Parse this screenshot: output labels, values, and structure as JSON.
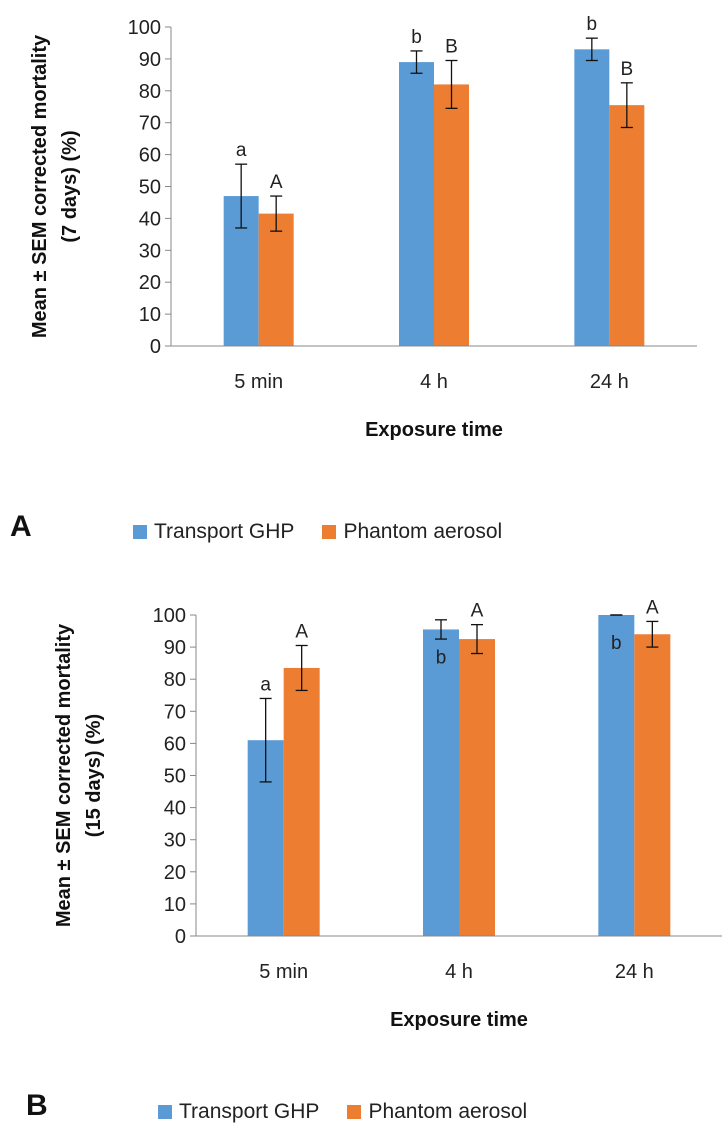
{
  "chart_data": [
    {
      "panel": "A",
      "type": "bar",
      "ylabel_lines": [
        "Mean ± SEM corrected mortality",
        "(7 days) (%)"
      ],
      "xlabel": "Exposure time",
      "categories": [
        "5 min",
        "4 h",
        "24 h"
      ],
      "ylim": [
        0,
        100
      ],
      "yticks": [
        0,
        10,
        20,
        30,
        40,
        50,
        60,
        70,
        80,
        90,
        100
      ],
      "grid": false,
      "legend_position": "bottom",
      "series": [
        {
          "name": "Transport GHP",
          "color": "#5B9BD5",
          "values": [
            47,
            89,
            93
          ],
          "errors": [
            10,
            3.5,
            3.5
          ],
          "letters": [
            "a",
            "b",
            "b"
          ]
        },
        {
          "name": "Phantom aerosol",
          "color": "#ED7D31",
          "values": [
            41.5,
            82,
            75.5
          ],
          "errors": [
            5.5,
            7.5,
            7
          ],
          "letters": [
            "A",
            "B",
            "B"
          ]
        }
      ]
    },
    {
      "panel": "B",
      "type": "bar",
      "ylabel_lines": [
        "Mean ± SEM corrected mortality",
        "(15 days) (%)"
      ],
      "xlabel": "Exposure time",
      "categories": [
        "5 min",
        "4 h",
        "24 h"
      ],
      "ylim": [
        0,
        100
      ],
      "yticks": [
        0,
        10,
        20,
        30,
        40,
        50,
        60,
        70,
        80,
        90,
        100
      ],
      "grid": false,
      "legend_position": "bottom",
      "series": [
        {
          "name": "Transport GHP",
          "color": "#5B9BD5",
          "values": [
            61,
            95.5,
            100
          ],
          "errors": [
            13,
            3,
            0
          ],
          "letters": [
            "a",
            "b",
            "b"
          ]
        },
        {
          "name": "Phantom aerosol",
          "color": "#ED7D31",
          "values": [
            83.5,
            92.5,
            94
          ],
          "errors": [
            7,
            4.5,
            4
          ],
          "letters": [
            "A",
            "A",
            "A"
          ]
        }
      ]
    }
  ]
}
